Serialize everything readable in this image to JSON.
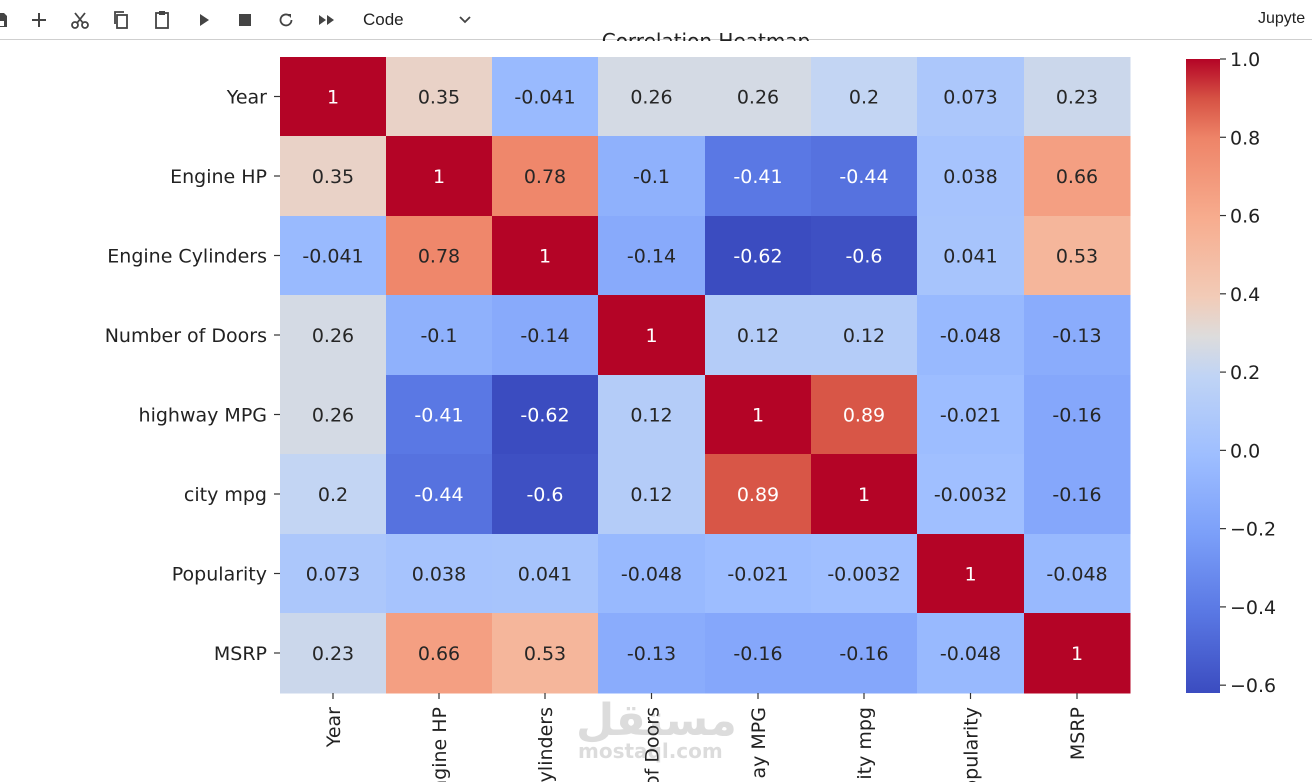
{
  "toolbar": {
    "buttons": [
      {
        "name": "save-button",
        "icon": "save-icon"
      },
      {
        "name": "insert-cell-button",
        "icon": "plus-icon"
      },
      {
        "name": "cut-button",
        "icon": "scissors-icon"
      },
      {
        "name": "copy-button",
        "icon": "copy-icon"
      },
      {
        "name": "paste-button",
        "icon": "clipboard-icon"
      },
      {
        "name": "run-button",
        "icon": "play-icon"
      },
      {
        "name": "interrupt-button",
        "icon": "stop-icon"
      },
      {
        "name": "restart-button",
        "icon": "restart-icon"
      },
      {
        "name": "restart-run-all-button",
        "icon": "fast-forward-icon"
      }
    ],
    "cell_type": "Code",
    "kernel_label": "Jupyte"
  },
  "chart_data": {
    "type": "heatmap",
    "title": "Correlation Heatmap",
    "colormap": "coolwarm",
    "row_labels": [
      "Year",
      "Engine HP",
      "Engine Cylinders",
      "Number of Doors",
      "highway MPG",
      "city mpg",
      "Popularity",
      "MSRP"
    ],
    "col_labels_visible": [
      "Year",
      "ngine HP",
      "ylinders",
      "of Doors",
      "ay MPG",
      "ity mpg",
      "opularity",
      "MSRP"
    ],
    "values": [
      [
        1,
        0.35,
        -0.041,
        0.26,
        0.26,
        0.2,
        0.073,
        0.23
      ],
      [
        0.35,
        1,
        0.78,
        -0.1,
        -0.41,
        -0.44,
        0.038,
        0.66
      ],
      [
        -0.041,
        0.78,
        1,
        -0.14,
        -0.62,
        -0.6,
        0.041,
        0.53
      ],
      [
        0.26,
        -0.1,
        -0.14,
        1,
        0.12,
        0.12,
        -0.048,
        -0.13
      ],
      [
        0.26,
        -0.41,
        -0.62,
        0.12,
        1,
        0.89,
        -0.021,
        -0.16
      ],
      [
        0.2,
        -0.44,
        -0.6,
        0.12,
        0.89,
        1,
        -0.0032,
        -0.16
      ],
      [
        0.073,
        0.038,
        0.041,
        -0.048,
        -0.021,
        -0.0032,
        1,
        -0.048
      ],
      [
        0.23,
        0.66,
        0.53,
        -0.13,
        -0.16,
        -0.16,
        -0.048,
        1
      ]
    ],
    "annotations": [
      [
        "1",
        "0.35",
        "-0.041",
        "0.26",
        "0.26",
        "0.2",
        "0.073",
        "0.23"
      ],
      [
        "0.35",
        "1",
        "0.78",
        "-0.1",
        "-0.41",
        "-0.44",
        "0.038",
        "0.66"
      ],
      [
        "-0.041",
        "0.78",
        "1",
        "-0.14",
        "-0.62",
        "-0.6",
        "0.041",
        "0.53"
      ],
      [
        "0.26",
        "-0.1",
        "-0.14",
        "1",
        "0.12",
        "0.12",
        "-0.048",
        "-0.13"
      ],
      [
        "0.26",
        "-0.41",
        "-0.62",
        "0.12",
        "1",
        "0.89",
        "-0.021",
        "-0.16"
      ],
      [
        "0.2",
        "-0.44",
        "-0.6",
        "0.12",
        "0.89",
        "1",
        "-0.0032",
        "-0.16"
      ],
      [
        "0.073",
        "0.038",
        "0.041",
        "-0.048",
        "-0.021",
        "-0.0032",
        "1",
        "-0.048"
      ],
      [
        "0.23",
        "0.66",
        "0.53",
        "-0.13",
        "-0.16",
        "-0.16",
        "-0.048",
        "1"
      ]
    ],
    "colorbar": {
      "vmin": -0.62,
      "vmax": 1.0,
      "ticks": [
        1.0,
        0.8,
        0.6,
        0.4,
        0.2,
        0.0,
        -0.2,
        -0.4,
        -0.6
      ],
      "tick_labels": [
        "1.0",
        "0.8",
        "0.6",
        "0.4",
        "0.2",
        "0.0",
        "−0.2",
        "−0.4",
        "−0.6"
      ]
    }
  },
  "watermark": {
    "arabic": "مستقل",
    "latin": "mostaql.com"
  }
}
